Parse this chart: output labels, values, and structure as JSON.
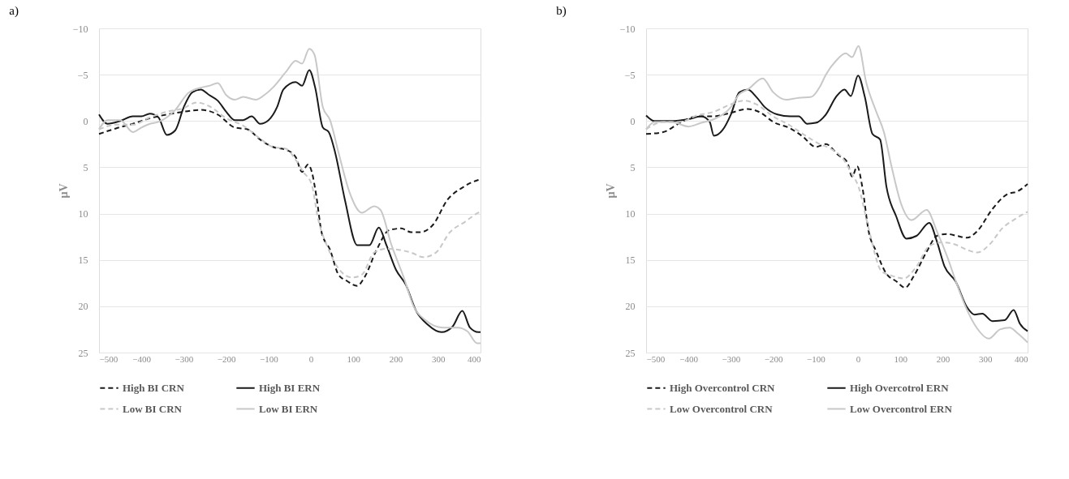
{
  "chart_data": [
    {
      "type": "line",
      "title": "a)",
      "ylabel": "µV",
      "xlim": [
        -500,
        400
      ],
      "xticks": [
        -500,
        -400,
        -300,
        -200,
        -100,
        0,
        100,
        200,
        300,
        400
      ],
      "ylim": [
        25,
        -10
      ],
      "yticks": [
        -10,
        -5,
        0,
        5,
        10,
        15,
        20,
        25
      ],
      "grid": "y",
      "legend": "bottom",
      "marker": "none",
      "series": [
        {
          "name": "High BI CRN",
          "color": "#1a1a1a",
          "line_style": "dashed",
          "x": [
            -500,
            -460,
            -420,
            -380,
            -340,
            -300,
            -260,
            -220,
            -180,
            -150,
            -120,
            -90,
            -59,
            -36,
            -21,
            -7,
            2,
            13,
            25,
            45,
            65,
            86,
            109,
            126,
            155,
            184,
            213,
            236,
            259,
            288,
            322,
            357,
            392,
            400
          ],
          "values": [
            1.4,
            0.8,
            0.3,
            -0.3,
            -0.7,
            -1,
            -1.2,
            -0.7,
            0.7,
            0.9,
            2,
            2.8,
            3.1,
            3.9,
            5.5,
            4.7,
            5.5,
            8.2,
            12,
            13.9,
            16.6,
            17.3,
            17.8,
            16.9,
            13.9,
            11.8,
            11.6,
            12,
            12,
            11.2,
            8.5,
            7.2,
            6.4,
            6.3
          ]
        },
        {
          "name": "High BI ERN",
          "color": "#1a1a1a",
          "line_style": "solid",
          "x": [
            -500,
            -480,
            -450,
            -420,
            -400,
            -380,
            -360,
            -340,
            -320,
            -300,
            -280,
            -260,
            -240,
            -220,
            -200,
            -180,
            -160,
            -140,
            -120,
            -100,
            -80,
            -65,
            -36,
            -21,
            -4,
            10,
            28,
            42,
            57,
            80,
            109,
            138,
            160,
            178,
            201,
            224,
            247,
            276,
            308,
            334,
            357,
            375,
            395,
            400
          ],
          "values": [
            -0.7,
            0.3,
            0,
            -0.5,
            -0.5,
            -0.8,
            -0.4,
            1.5,
            1,
            -1.5,
            -3.1,
            -3.4,
            -2.8,
            -2.2,
            -1,
            -0.1,
            -0.1,
            -0.5,
            0.3,
            -0.1,
            -1.5,
            -3.4,
            -4.2,
            -3.8,
            -5.5,
            -3.6,
            0.7,
            1.2,
            3.4,
            8.5,
            13.4,
            13.4,
            11.5,
            13.4,
            16.1,
            17.7,
            20.4,
            22,
            22.8,
            22.2,
            20.5,
            22.3,
            22.8,
            22.8
          ]
        },
        {
          "name": "Low BI CRN",
          "color": "#c8c8c8",
          "line_style": "dashed",
          "x": [
            -500,
            -460,
            -420,
            -380,
            -340,
            -300,
            -270,
            -240,
            -200,
            -160,
            -120,
            -90,
            -59,
            -36,
            -18,
            2,
            16,
            39,
            68,
            97,
            120,
            149,
            178,
            207,
            236,
            265,
            295,
            328,
            363,
            395,
            400
          ],
          "values": [
            0.9,
            0.4,
            0.4,
            -0.4,
            -1,
            -1.4,
            -2,
            -1.6,
            -0.3,
            0.5,
            1.9,
            2.8,
            3,
            4.2,
            5.5,
            6.9,
            10.4,
            13.6,
            16.1,
            16.9,
            16.6,
            14.2,
            13.8,
            13.9,
            14.2,
            14.7,
            14.2,
            12,
            10.9,
            9.9,
            9.8
          ]
        },
        {
          "name": "Low BI ERN",
          "color": "#c8c8c8",
          "line_style": "solid",
          "x": [
            -500,
            -480,
            -450,
            -420,
            -400,
            -380,
            -360,
            -340,
            -320,
            -290,
            -260,
            -240,
            -220,
            -200,
            -180,
            -160,
            -130,
            -110,
            -90,
            -59,
            -36,
            -21,
            -4,
            8,
            28,
            45,
            65,
            91,
            120,
            149,
            164,
            190,
            219,
            242,
            270,
            311,
            346,
            369,
            392,
            400
          ],
          "values": [
            0.9,
            -0.1,
            -0.1,
            1.2,
            0.7,
            0.3,
            0.1,
            -0.4,
            -1.2,
            -3,
            -3.6,
            -3.8,
            -4.1,
            -2.8,
            -2.3,
            -2.6,
            -2.3,
            -2.8,
            -3.6,
            -5.3,
            -6.5,
            -6.2,
            -7.8,
            -7.2,
            -1.5,
            -0.1,
            3.4,
            7.7,
            9.9,
            9.2,
            9.6,
            13.4,
            16.9,
            20,
            21.5,
            22.3,
            22.3,
            22.7,
            24,
            24
          ]
        }
      ]
    },
    {
      "type": "line",
      "title": "b)",
      "ylabel": "µV",
      "xlim": [
        -500,
        400
      ],
      "xticks": [
        -500,
        -400,
        -300,
        -200,
        -100,
        0,
        100,
        200,
        300,
        400
      ],
      "ylim": [
        25,
        -10
      ],
      "yticks": [
        -10,
        -5,
        0,
        5,
        10,
        15,
        20,
        25
      ],
      "grid": "y",
      "legend": "bottom",
      "marker": "none",
      "series": [
        {
          "name": "High Overcontrol CRN",
          "color": "#1a1a1a",
          "line_style": "dashed",
          "x": [
            -500,
            -460,
            -420,
            -380,
            -340,
            -300,
            -260,
            -230,
            -200,
            -160,
            -130,
            -100,
            -76,
            -46,
            -26,
            -14,
            -2,
            10,
            25,
            43,
            67,
            90,
            111,
            132,
            162,
            186,
            210,
            233,
            257,
            281,
            317,
            352,
            376,
            400
          ],
          "values": [
            1.4,
            1.2,
            0.2,
            -0.5,
            -0.5,
            -0.9,
            -1.3,
            -0.9,
            0.1,
            0.8,
            1.7,
            2.8,
            2.5,
            3.7,
            4.4,
            6,
            4.9,
            7.1,
            11.9,
            14.1,
            16.5,
            17.3,
            18,
            16.7,
            14.1,
            12.4,
            12.2,
            12.4,
            12.6,
            11.9,
            9.5,
            7.9,
            7.6,
            6.8
          ]
        },
        {
          "name": "High Overcotrol ERN",
          "color": "#1a1a1a",
          "line_style": "solid",
          "x": [
            -500,
            -480,
            -440,
            -400,
            -370,
            -350,
            -340,
            -320,
            -300,
            -280,
            -260,
            -240,
            -220,
            -190,
            -160,
            -140,
            -120,
            -100,
            -76,
            -52,
            -32,
            -17,
            0,
            16,
            34,
            52,
            67,
            90,
            114,
            138,
            168,
            186,
            204,
            230,
            257,
            275,
            293,
            317,
            346,
            367,
            382,
            400
          ],
          "values": [
            -0.6,
            0,
            0,
            -0.2,
            -0.5,
            0.1,
            1.6,
            1,
            -0.7,
            -3.1,
            -3.4,
            -2.6,
            -1.5,
            -0.7,
            -0.5,
            -0.5,
            0.3,
            0.2,
            -0.7,
            -2.6,
            -3.4,
            -2.7,
            -4.9,
            -2.6,
            1.4,
            2,
            7.1,
            10.3,
            12.7,
            12.4,
            11,
            13,
            15.7,
            17.3,
            20.1,
            20.9,
            20.8,
            21.6,
            21.5,
            20.4,
            21.9,
            22.7
          ]
        },
        {
          "name": "Low Overcontrol CRN",
          "color": "#c8c8c8",
          "line_style": "dashed",
          "x": [
            -500,
            -460,
            -420,
            -380,
            -340,
            -300,
            -270,
            -240,
            -200,
            -160,
            -120,
            -90,
            -64,
            -35,
            -17,
            1,
            25,
            55,
            79,
            108,
            138,
            168,
            198,
            227,
            257,
            281,
            311,
            340,
            370,
            400
          ],
          "values": [
            0.9,
            0.1,
            0.1,
            -0.6,
            -1,
            -1.8,
            -2.2,
            -1.8,
            -0.5,
            0.5,
            1.7,
            2.5,
            3,
            4.1,
            5.5,
            7.1,
            11.6,
            16.2,
            16.7,
            17,
            15.7,
            13.5,
            13.1,
            13.3,
            13.9,
            14.2,
            13.3,
            11.6,
            10.6,
            9.8
          ]
        },
        {
          "name": "Low Overcontrol ERN",
          "color": "#c8c8c8",
          "line_style": "solid",
          "x": [
            -500,
            -480,
            -440,
            -400,
            -370,
            -340,
            -300,
            -280,
            -260,
            -225,
            -200,
            -170,
            -140,
            -110,
            -90,
            -76,
            -52,
            -29,
            -14,
            1,
            19,
            43,
            61,
            79,
            102,
            126,
            162,
            186,
            210,
            233,
            257,
            281,
            308,
            335,
            358,
            376,
            400
          ],
          "values": [
            0.9,
            0.1,
            0.1,
            0.6,
            0.2,
            -0.2,
            -1.5,
            -2.9,
            -3.4,
            -4.6,
            -3.1,
            -2.3,
            -2.5,
            -2.6,
            -3.7,
            -5,
            -6.5,
            -7.3,
            -6.9,
            -8.1,
            -4.2,
            -1,
            1.2,
            4.9,
            9,
            10.7,
            9.6,
            11.9,
            14.6,
            17.6,
            20.4,
            22.4,
            23.5,
            22.5,
            22.3,
            22.9,
            23.9
          ]
        }
      ]
    }
  ]
}
